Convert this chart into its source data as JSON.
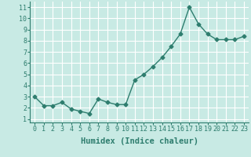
{
  "x": [
    0,
    1,
    2,
    3,
    4,
    5,
    6,
    7,
    8,
    9,
    10,
    11,
    12,
    13,
    14,
    15,
    16,
    17,
    18,
    19,
    20,
    21,
    22,
    23
  ],
  "y": [
    3.0,
    2.2,
    2.2,
    2.5,
    1.9,
    1.7,
    1.5,
    2.8,
    2.5,
    2.3,
    2.3,
    4.5,
    5.0,
    5.7,
    6.5,
    7.5,
    8.6,
    11.0,
    9.5,
    8.6,
    8.1,
    8.1,
    8.1,
    8.4
  ],
  "line_color": "#2e7d6e",
  "marker": "D",
  "marker_size": 2.5,
  "bg_color": "#c8eae4",
  "grid_color": "#ffffff",
  "xlabel": "Humidex (Indice chaleur)",
  "xlim": [
    -0.5,
    23.5
  ],
  "ylim": [
    0.7,
    11.5
  ],
  "yticks": [
    1,
    2,
    3,
    4,
    5,
    6,
    7,
    8,
    9,
    10,
    11
  ],
  "xticks": [
    0,
    1,
    2,
    3,
    4,
    5,
    6,
    7,
    8,
    9,
    10,
    11,
    12,
    13,
    14,
    15,
    16,
    17,
    18,
    19,
    20,
    21,
    22,
    23
  ],
  "tick_fontsize": 6,
  "xlabel_fontsize": 7.5,
  "line_width": 1.0
}
